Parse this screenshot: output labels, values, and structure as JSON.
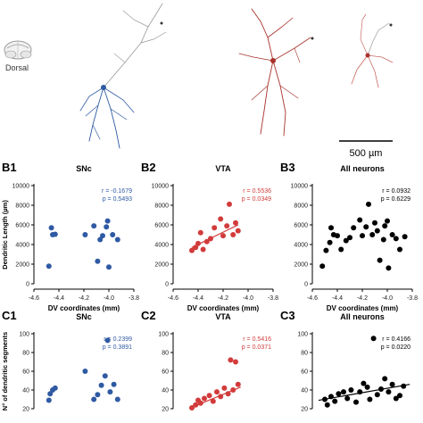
{
  "illustration": {
    "brain_view_label": "Dorsal",
    "scale_bar_label": "500 µm",
    "colors": {
      "snc": "#2f5aa3",
      "vta": "#a8322b",
      "brain": "#9a9a9a",
      "all": "#000000"
    }
  },
  "chart_data": [
    {
      "panel": "B1",
      "title": "SNc",
      "type": "scatter",
      "xlabel": "DV coordinates (mm)",
      "ylabel": "Dendritic Length (µm)",
      "xlim": [
        -4.6,
        -3.8
      ],
      "ylim": [
        0,
        10000
      ],
      "xticks": [
        "-4.6",
        "-4.4",
        "-4.2",
        "-4.0",
        "-3.8"
      ],
      "yticks": [
        "0",
        "2000",
        "4000",
        "6000",
        "8000",
        "10000"
      ],
      "stats": [
        "r = -0.1679",
        "p = 0.5493"
      ],
      "color": "#2f5aa3",
      "fit": false,
      "points": [
        {
          "x": -4.48,
          "y": 1800
        },
        {
          "x": -4.46,
          "y": 5700
        },
        {
          "x": -4.45,
          "y": 5000
        },
        {
          "x": -4.43,
          "y": 5050
        },
        {
          "x": -4.19,
          "y": 5000
        },
        {
          "x": -4.12,
          "y": 5900
        },
        {
          "x": -4.09,
          "y": 2300
        },
        {
          "x": -4.07,
          "y": 4500
        },
        {
          "x": -4.05,
          "y": 4900
        },
        {
          "x": -4.02,
          "y": 5800
        },
        {
          "x": -4.01,
          "y": 6400
        },
        {
          "x": -4.0,
          "y": 1700
        },
        {
          "x": -3.97,
          "y": 5000
        },
        {
          "x": -3.93,
          "y": 4500
        }
      ]
    },
    {
      "panel": "B2",
      "title": "VTA",
      "type": "scatter",
      "xlabel": "DV coordinates (mm)",
      "ylabel": "",
      "xlim": [
        -4.6,
        -3.8
      ],
      "ylim": [
        0,
        10000
      ],
      "xticks": [
        "-4.6",
        "-4.4",
        "-4.2",
        "-4.0",
        "-3.8"
      ],
      "yticks": [
        "0",
        "2000",
        "4000",
        "6000",
        "8000",
        "10000"
      ],
      "stats": [
        "r = 0.5536",
        "p = 0.0349"
      ],
      "color": "#d23b3b",
      "fit": true,
      "fit_line": [
        [
          -4.45,
          3700
        ],
        [
          -4.08,
          6000
        ]
      ],
      "points": [
        {
          "x": -4.45,
          "y": 3400
        },
        {
          "x": -4.42,
          "y": 3700
        },
        {
          "x": -4.4,
          "y": 4100
        },
        {
          "x": -4.38,
          "y": 5200
        },
        {
          "x": -4.36,
          "y": 3500
        },
        {
          "x": -4.33,
          "y": 4300
        },
        {
          "x": -4.3,
          "y": 4600
        },
        {
          "x": -4.27,
          "y": 5700
        },
        {
          "x": -4.22,
          "y": 6600
        },
        {
          "x": -4.2,
          "y": 4900
        },
        {
          "x": -4.17,
          "y": 5900
        },
        {
          "x": -4.15,
          "y": 8100
        },
        {
          "x": -4.12,
          "y": 5000
        },
        {
          "x": -4.1,
          "y": 6200
        },
        {
          "x": -4.08,
          "y": 5400
        }
      ]
    },
    {
      "panel": "B3",
      "title": "All neurons",
      "type": "scatter",
      "xlabel": "DV coordinates (mm)",
      "ylabel": "",
      "xlim": [
        -4.6,
        -3.8
      ],
      "ylim": [
        0,
        10000
      ],
      "xticks": [
        "-4.6",
        "-4.4",
        "-4.2",
        "-4.0",
        "-3.8"
      ],
      "yticks": [
        "0",
        "2000",
        "4000",
        "6000",
        "8000",
        "10000"
      ],
      "stats": [
        "r = 0.0932",
        "p = 0.6229"
      ],
      "color": "#000000",
      "fit": false,
      "points": [
        {
          "x": -4.52,
          "y": 1800
        },
        {
          "x": -4.49,
          "y": 3400
        },
        {
          "x": -4.46,
          "y": 4200
        },
        {
          "x": -4.45,
          "y": 5700
        },
        {
          "x": -4.43,
          "y": 5000
        },
        {
          "x": -4.4,
          "y": 4900
        },
        {
          "x": -4.37,
          "y": 3500
        },
        {
          "x": -4.33,
          "y": 4400
        },
        {
          "x": -4.3,
          "y": 4700
        },
        {
          "x": -4.27,
          "y": 5700
        },
        {
          "x": -4.22,
          "y": 6500
        },
        {
          "x": -4.2,
          "y": 4900
        },
        {
          "x": -4.17,
          "y": 5800
        },
        {
          "x": -4.15,
          "y": 8100
        },
        {
          "x": -4.12,
          "y": 5000
        },
        {
          "x": -4.1,
          "y": 6200
        },
        {
          "x": -4.08,
          "y": 5400
        },
        {
          "x": -4.06,
          "y": 2400
        },
        {
          "x": -4.03,
          "y": 4500
        },
        {
          "x": -4.02,
          "y": 5900
        },
        {
          "x": -4.0,
          "y": 6400
        },
        {
          "x": -3.99,
          "y": 1600
        },
        {
          "x": -3.96,
          "y": 5000
        },
        {
          "x": -3.93,
          "y": 4600
        },
        {
          "x": -3.9,
          "y": 3500
        },
        {
          "x": -3.86,
          "y": 4800
        }
      ]
    },
    {
      "panel": "C1",
      "title": "SNc",
      "type": "scatter",
      "xlabel": "",
      "ylabel": "N° of dendritic segments",
      "ylim": [
        20,
        100
      ],
      "yticks": [
        "20",
        "40",
        "60",
        "80",
        "100"
      ],
      "stats": [
        "r = 0.2399",
        "p = 0.3891"
      ],
      "color": "#2f5aa3",
      "fit": false,
      "points": [
        {
          "x": -4.48,
          "y": 29
        },
        {
          "x": -4.47,
          "y": 36
        },
        {
          "x": -4.45,
          "y": 40
        },
        {
          "x": -4.43,
          "y": 42
        },
        {
          "x": -4.19,
          "y": 60
        },
        {
          "x": -4.12,
          "y": 30
        },
        {
          "x": -4.09,
          "y": 35
        },
        {
          "x": -4.06,
          "y": 45
        },
        {
          "x": -4.03,
          "y": 55
        },
        {
          "x": -4.01,
          "y": 93
        },
        {
          "x": -3.99,
          "y": 38
        },
        {
          "x": -3.96,
          "y": 46
        },
        {
          "x": -3.93,
          "y": 30
        }
      ]
    },
    {
      "panel": "C2",
      "title": "VTA",
      "type": "scatter",
      "xlabel": "",
      "ylabel": "",
      "ylim": [
        20,
        100
      ],
      "yticks": [
        "20",
        "40",
        "60",
        "80",
        "100"
      ],
      "stats": [
        "r = 0.5416",
        "p = 0.0371"
      ],
      "color": "#d23b3b",
      "fit": true,
      "fit_line": [
        [
          -4.46,
          21
        ],
        [
          -4.06,
          43
        ]
      ],
      "points": [
        {
          "x": -4.45,
          "y": 21
        },
        {
          "x": -4.42,
          "y": 24
        },
        {
          "x": -4.4,
          "y": 29
        },
        {
          "x": -4.38,
          "y": 26
        },
        {
          "x": -4.35,
          "y": 31
        },
        {
          "x": -4.31,
          "y": 34
        },
        {
          "x": -4.28,
          "y": 28
        },
        {
          "x": -4.25,
          "y": 38
        },
        {
          "x": -4.22,
          "y": 33
        },
        {
          "x": -4.19,
          "y": 42
        },
        {
          "x": -4.16,
          "y": 36
        },
        {
          "x": -4.14,
          "y": 72
        },
        {
          "x": -4.12,
          "y": 40
        },
        {
          "x": -4.1,
          "y": 70
        },
        {
          "x": -4.08,
          "y": 46
        }
      ]
    },
    {
      "panel": "C3",
      "title": "All neurons",
      "type": "scatter",
      "xlabel": "",
      "ylabel": "",
      "ylim": [
        20,
        100
      ],
      "yticks": [
        "20",
        "40",
        "60",
        "80",
        "100"
      ],
      "stats": [
        "r = 0.4166",
        "p = 0.0220"
      ],
      "color": "#000000",
      "fit": true,
      "fit_line": [
        [
          -4.55,
          29
        ],
        [
          -3.82,
          46
        ]
      ],
      "points": [
        {
          "x": -4.5,
          "y": 30
        },
        {
          "x": -4.48,
          "y": 24
        },
        {
          "x": -4.45,
          "y": 33
        },
        {
          "x": -4.42,
          "y": 28
        },
        {
          "x": -4.39,
          "y": 36
        },
        {
          "x": -4.35,
          "y": 38
        },
        {
          "x": -4.32,
          "y": 31
        },
        {
          "x": -4.29,
          "y": 40
        },
        {
          "x": -4.25,
          "y": 27
        },
        {
          "x": -4.22,
          "y": 38
        },
        {
          "x": -4.19,
          "y": 47
        },
        {
          "x": -4.16,
          "y": 43
        },
        {
          "x": -4.14,
          "y": 30
        },
        {
          "x": -4.11,
          "y": 95
        },
        {
          "x": -4.08,
          "y": 35
        },
        {
          "x": -4.05,
          "y": 41
        },
        {
          "x": -4.02,
          "y": 52
        },
        {
          "x": -3.99,
          "y": 38
        },
        {
          "x": -3.96,
          "y": 46
        },
        {
          "x": -3.93,
          "y": 31
        },
        {
          "x": -3.9,
          "y": 34
        },
        {
          "x": -3.87,
          "y": 44
        }
      ]
    }
  ]
}
